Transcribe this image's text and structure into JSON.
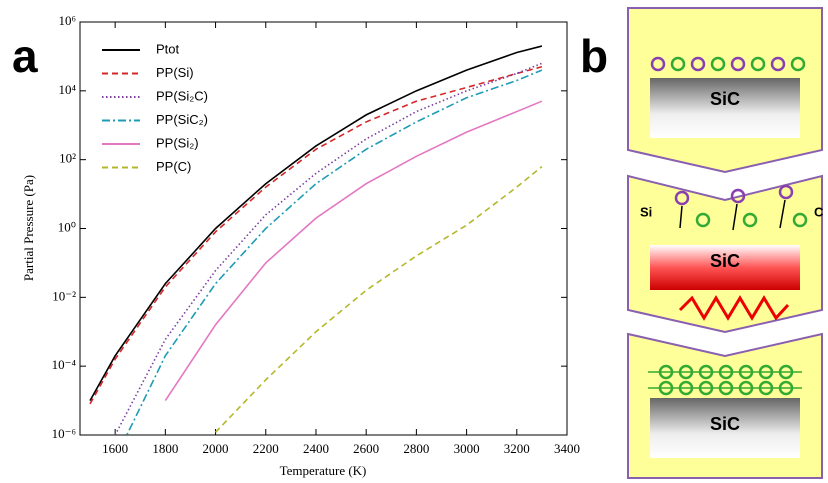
{
  "chart_data": {
    "type": "line",
    "xlabel": "Temperature (K)",
    "ylabel": "Partial Pressure (Pa)",
    "x": [
      1500,
      1600,
      1800,
      2000,
      2200,
      2400,
      2600,
      2800,
      3000,
      3200,
      3300
    ],
    "xlim": [
      1460,
      3400
    ],
    "xticks": [
      1600,
      1800,
      2000,
      2200,
      2400,
      2600,
      2800,
      3000,
      3200,
      3400
    ],
    "ylim": [
      1e-06,
      1000000
    ],
    "log_y": true,
    "yticks": [
      {
        "value": 1e-06,
        "label": "10⁻⁶"
      },
      {
        "value": 0.0001,
        "label": "10⁻⁴"
      },
      {
        "value": 0.01,
        "label": "10⁻²"
      },
      {
        "value": 1,
        "label": "10⁰"
      },
      {
        "value": 100,
        "label": "10²"
      },
      {
        "value": 10000,
        "label": "10⁴"
      },
      {
        "value": 1000000,
        "label": "10⁶"
      }
    ],
    "legend": "upper-left",
    "series": [
      {
        "name": "Ptot",
        "color": "#000000",
        "dash": "solid",
        "values": [
          1e-05,
          0.0002,
          0.025,
          1,
          20,
          250,
          2000,
          10000,
          40000,
          130000,
          200000
        ]
      },
      {
        "name": "PP(Si)",
        "color": "#d62728",
        "dash": "dashed",
        "values": [
          8e-06,
          0.00016,
          0.02,
          0.8,
          16,
          200,
          1250,
          5000,
          12500,
          32000,
          50000
        ]
      },
      {
        "name": "PP(Si₂C)",
        "color": "#7b3fa0",
        "dash": "dotted",
        "values": [
          null,
          1e-06,
          0.0006,
          0.06,
          2.5,
          40,
          400,
          2500,
          10000,
          32000,
          63000
        ]
      },
      {
        "name": "PP(SiC₂)",
        "color": "#1f9bb5",
        "dash": "dashdot",
        "values": [
          null,
          2e-07,
          0.0002,
          0.025,
          1,
          20,
          200,
          1250,
          6300,
          20000,
          40000
        ]
      },
      {
        "name": "PP(Si₂)",
        "color": "#e377c2",
        "dash": "solid",
        "values": [
          null,
          null,
          1e-05,
          0.0016,
          0.1,
          2,
          20,
          125,
          630,
          2500,
          5000
        ]
      },
      {
        "name": "PP(C)",
        "color": "#b5b82a",
        "dash": "dashed",
        "values": [
          null,
          null,
          null,
          1.2e-06,
          4e-05,
          0.001,
          0.016,
          0.16,
          1.25,
          16,
          63
        ]
      }
    ]
  },
  "panel_labels": [
    "a",
    "b"
  ],
  "diagram": {
    "top": "SiC",
    "middle": "SiC",
    "middle_left": "Si",
    "middle_right": "C",
    "bottom": "SiC"
  }
}
